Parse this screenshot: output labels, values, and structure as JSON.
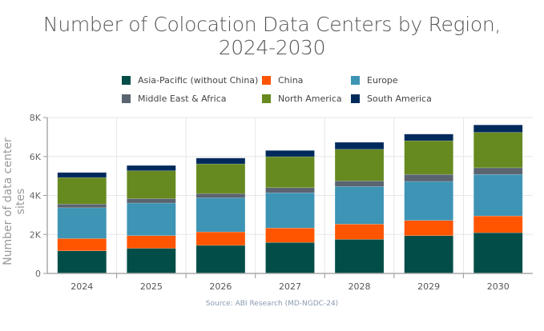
{
  "chart_data": {
    "type": "bar",
    "stacked": true,
    "title": "Number of Colocation Data Centers by Region, 2024-2030",
    "title_lines": [
      "Number of Colocation Data Centers by Region,",
      "2024-2030"
    ],
    "xlabel": "",
    "ylabel": "Number of data center sites",
    "ylim": [
      0,
      8000
    ],
    "yticks": [
      0,
      2000,
      4000,
      6000,
      8000
    ],
    "ytick_labels": [
      "0",
      "2K",
      "4K",
      "6K",
      "8K"
    ],
    "grid": true,
    "legend": "top",
    "categories": [
      "2024",
      "2025",
      "2026",
      "2027",
      "2028",
      "2029",
      "2030"
    ],
    "series": [
      {
        "name": "Asia-Pacific (without China)",
        "color": "#024d47",
        "values": [
          1160,
          1290,
          1440,
          1590,
          1750,
          1940,
          2090
        ]
      },
      {
        "name": "China",
        "color": "#ff5500",
        "values": [
          630,
          650,
          690,
          740,
          780,
          780,
          860
        ]
      },
      {
        "name": "Europe",
        "color": "#3d94b5",
        "values": [
          1580,
          1670,
          1750,
          1810,
          1930,
          2000,
          2130
        ]
      },
      {
        "name": "Middle East & Africa",
        "color": "#5a6470",
        "values": [
          190,
          230,
          220,
          260,
          290,
          360,
          340
        ]
      },
      {
        "name": "North America",
        "color": "#668a1f",
        "values": [
          1360,
          1430,
          1520,
          1590,
          1620,
          1730,
          1820
        ]
      },
      {
        "name": "South America",
        "color": "#002a5c",
        "values": [
          260,
          270,
          300,
          320,
          360,
          340,
          380
        ]
      }
    ],
    "source": "Source: ABI Research (MD-NGDC-24)"
  }
}
